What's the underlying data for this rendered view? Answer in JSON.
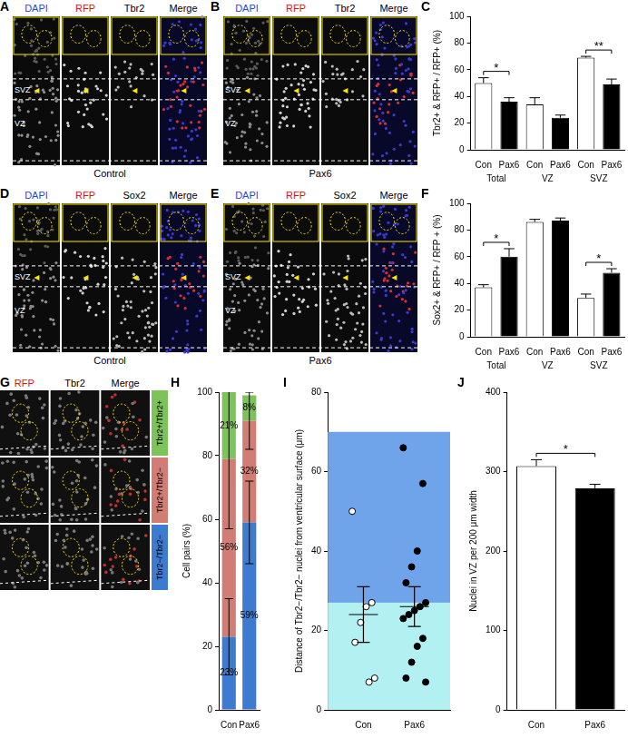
{
  "image_panels": [
    {
      "panel": "A",
      "channels": [
        "DAPI",
        "RFP",
        "Tbr2",
        "Merge"
      ],
      "colors": [
        "#2f3fd8",
        "#e01010",
        "#000000",
        "#000000"
      ],
      "regions": [
        "SVZ",
        "VZ"
      ],
      "condition": "Control"
    },
    {
      "panel": "B",
      "channels": [
        "DAPI",
        "RFP",
        "Tbr2",
        "Merge"
      ],
      "colors": [
        "#2f3fd8",
        "#e01010",
        "#000000",
        "#000000"
      ],
      "regions": [
        "SVZ",
        "VZ"
      ],
      "condition": "Pax6"
    },
    {
      "panel": "D",
      "channels": [
        "DAPI",
        "RFP",
        "Sox2",
        "Merge"
      ],
      "colors": [
        "#2f3fd8",
        "#e01010",
        "#000000",
        "#000000"
      ],
      "regions": [
        "SVZ",
        "VZ"
      ],
      "condition": "Control"
    },
    {
      "panel": "E",
      "channels": [
        "DAPI",
        "RFP",
        "Sox2",
        "Merge"
      ],
      "colors": [
        "#2f3fd8",
        "#e01010",
        "#000000",
        "#000000"
      ],
      "regions": [
        "SVZ",
        "VZ"
      ],
      "condition": "Pax6"
    },
    {
      "panel": "G",
      "channels": [
        "RFP",
        "Tbr2",
        "Merge"
      ],
      "colors": [
        "#e01010",
        "#000000",
        "#000000"
      ]
    }
  ],
  "chart_data": [
    {
      "panel": "C",
      "type": "bar",
      "categories": [
        "Con",
        "Pax6",
        "Con",
        "Pax6",
        "Con",
        "Pax6"
      ],
      "groups": [
        "Total",
        "VZ",
        "SVZ"
      ],
      "values": [
        50,
        36,
        34,
        24,
        69,
        49
      ],
      "errors": [
        4,
        3,
        5,
        2,
        1,
        4
      ],
      "colors": [
        "#ffffff",
        "#000000",
        "#ffffff",
        "#000000",
        "#ffffff",
        "#000000"
      ],
      "y_label": "Tbr2+ & RFP+ / RFP+ (%)",
      "ylim": [
        0,
        100
      ],
      "yticks": [
        0,
        20,
        40,
        60,
        80,
        100
      ],
      "grid": false,
      "significance": [
        {
          "between": [
            0,
            1
          ],
          "label": "*"
        },
        {
          "between": [
            4,
            5
          ],
          "label": "**"
        }
      ]
    },
    {
      "panel": "F",
      "type": "bar",
      "categories": [
        "Con",
        "Pax6",
        "Con",
        "Pax6",
        "Con",
        "Pax6"
      ],
      "groups": [
        "Total",
        "VZ",
        "SVZ"
      ],
      "values": [
        37,
        60,
        86,
        87,
        29,
        48
      ],
      "errors": [
        2,
        6,
        2,
        2,
        3,
        3
      ],
      "colors": [
        "#ffffff",
        "#000000",
        "#ffffff",
        "#000000",
        "#ffffff",
        "#000000"
      ],
      "y_label": "Sox2+ & RFP+ / RFP + (%)",
      "ylim": [
        0,
        100
      ],
      "yticks": [
        0,
        20,
        40,
        60,
        80,
        100
      ],
      "grid": false,
      "significance": [
        {
          "between": [
            0,
            1
          ],
          "label": "*"
        },
        {
          "between": [
            4,
            5
          ],
          "label": "*"
        }
      ]
    },
    {
      "panel": "H",
      "type": "bar",
      "stacked": true,
      "data_labels": true,
      "categories": [
        "Con",
        "Pax6"
      ],
      "y_label": "Cell pairs (%)",
      "ylim": [
        0,
        100
      ],
      "yticks": [
        0,
        20,
        40,
        60,
        80,
        100
      ],
      "grid": false,
      "series": [
        {
          "name": "Tbr2−/Tbr2−",
          "color": "#3d7bd1",
          "values": [
            23,
            59
          ],
          "value_labels": [
            "23%",
            "59%"
          ],
          "errors": [
            12,
            13
          ]
        },
        {
          "name": "Tbr2+/Tbr2−",
          "color": "#d27d73",
          "values": [
            56,
            32
          ],
          "value_labels": [
            "56%",
            "32%"
          ],
          "errors": [
            22,
            9
          ]
        },
        {
          "name": "Tbr2+/Tbr2+",
          "color": "#7cc35a",
          "values": [
            21,
            8
          ],
          "value_labels": [
            "21%",
            "8%"
          ],
          "errors": [
            null,
            null
          ]
        }
      ]
    },
    {
      "panel": "I",
      "type": "scatter",
      "categories": [
        "Con",
        "Pax6"
      ],
      "y_label": "Distance of Tbr2−/Tbr2− nuclei from ventricular surface (μm)",
      "ylim": [
        0,
        80
      ],
      "yticks": [
        0,
        20,
        40,
        60,
        80
      ],
      "grid": false,
      "bands": [
        {
          "from": 0,
          "to": 27,
          "color": "#b3f0f2"
        },
        {
          "from": 27,
          "to": 70,
          "color": "#6fa3ea"
        }
      ],
      "points": [
        {
          "values": [
            50,
            27,
            26,
            22,
            17,
            8,
            7
          ],
          "mean": 24,
          "sem": 7,
          "marker": "open_circle"
        },
        {
          "values": [
            66,
            57,
            40,
            36,
            32,
            27,
            26,
            25,
            24,
            23,
            18,
            16,
            12,
            8,
            7
          ],
          "mean": 26,
          "sem": 5,
          "marker": "circle"
        }
      ]
    },
    {
      "panel": "J",
      "type": "bar",
      "categories": [
        "Con",
        "Pax6"
      ],
      "values": [
        307,
        279
      ],
      "errors": [
        8,
        5
      ],
      "colors": [
        "#ffffff",
        "#000000"
      ],
      "y_label": "Nuclei in VZ per 200 μm width",
      "ylim": [
        0,
        400
      ],
      "yticks": [
        0,
        100,
        200,
        300,
        400
      ],
      "grid": false,
      "significance": [
        {
          "between": [
            0,
            1
          ],
          "label": "*"
        }
      ]
    }
  ]
}
